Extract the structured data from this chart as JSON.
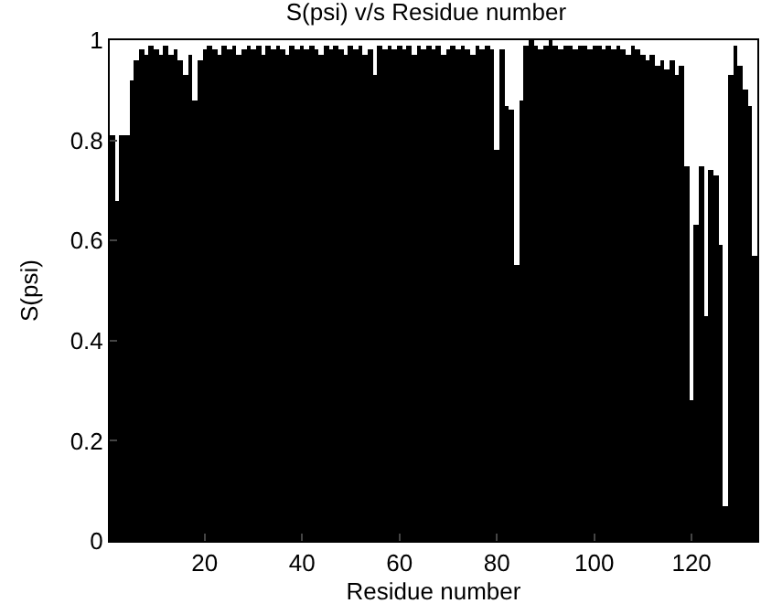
{
  "chart_data": {
    "type": "bar",
    "title": "S(psi) v/s Residue number",
    "xlabel": "Residue number",
    "ylabel": "S(psi)",
    "x": [
      1,
      2,
      3,
      4,
      5,
      6,
      7,
      8,
      9,
      10,
      11,
      12,
      13,
      14,
      15,
      16,
      17,
      18,
      19,
      20,
      21,
      22,
      23,
      24,
      25,
      26,
      27,
      28,
      29,
      30,
      31,
      32,
      33,
      34,
      35,
      36,
      37,
      38,
      39,
      40,
      41,
      42,
      43,
      44,
      45,
      46,
      47,
      48,
      49,
      50,
      51,
      52,
      53,
      54,
      55,
      56,
      57,
      58,
      59,
      60,
      61,
      62,
      63,
      64,
      65,
      66,
      67,
      68,
      69,
      70,
      71,
      72,
      73,
      74,
      75,
      76,
      77,
      78,
      79,
      80,
      81,
      82,
      83,
      84,
      85,
      86,
      87,
      88,
      89,
      90,
      91,
      92,
      93,
      94,
      95,
      96,
      97,
      98,
      99,
      100,
      101,
      102,
      103,
      104,
      105,
      106,
      107,
      108,
      109,
      110,
      111,
      112,
      113,
      114,
      115,
      116,
      117,
      118,
      119,
      120,
      121,
      122,
      123,
      124,
      125,
      126,
      127,
      128,
      129,
      130,
      131,
      132,
      133
    ],
    "values": [
      0.81,
      0.68,
      0.81,
      0.81,
      0.92,
      0.96,
      0.98,
      0.97,
      0.99,
      0.98,
      0.97,
      0.99,
      0.97,
      0.98,
      0.96,
      0.93,
      0.97,
      0.88,
      0.96,
      0.98,
      0.99,
      0.98,
      0.97,
      0.99,
      0.98,
      0.99,
      0.97,
      0.98,
      0.99,
      0.98,
      0.99,
      0.97,
      0.99,
      0.98,
      0.99,
      0.98,
      0.97,
      0.99,
      0.98,
      0.99,
      0.98,
      0.99,
      0.98,
      0.97,
      0.99,
      0.98,
      0.99,
      0.98,
      0.97,
      0.99,
      0.98,
      0.99,
      0.97,
      0.98,
      0.93,
      0.99,
      0.98,
      0.99,
      0.98,
      0.99,
      0.98,
      0.99,
      0.97,
      0.99,
      0.98,
      0.99,
      0.98,
      0.99,
      0.97,
      0.98,
      0.99,
      0.98,
      0.99,
      0.98,
      0.97,
      0.99,
      0.98,
      0.99,
      0.98,
      0.78,
      0.98,
      0.87,
      0.86,
      0.55,
      0.88,
      0.99,
      1.0,
      0.99,
      0.98,
      0.99,
      1.0,
      0.99,
      0.98,
      0.99,
      0.99,
      0.98,
      0.99,
      0.99,
      0.98,
      0.99,
      0.99,
      0.98,
      0.99,
      0.98,
      0.99,
      0.98,
      0.97,
      0.99,
      0.98,
      0.97,
      0.96,
      0.97,
      0.95,
      0.96,
      0.94,
      0.96,
      0.93,
      0.95,
      0.75,
      0.28,
      0.63,
      0.75,
      0.45,
      0.74,
      0.73,
      0.59,
      0.07,
      0.93,
      0.99,
      0.95,
      0.9,
      0.87,
      0.57
    ],
    "color": "#000000",
    "xlim": [
      0.5,
      133.5
    ],
    "xticks": [
      20,
      40,
      60,
      80,
      100,
      120
    ],
    "ylim": [
      0,
      1
    ],
    "yticks": [
      0,
      0.2,
      0.4,
      0.6,
      0.8,
      1
    ]
  }
}
